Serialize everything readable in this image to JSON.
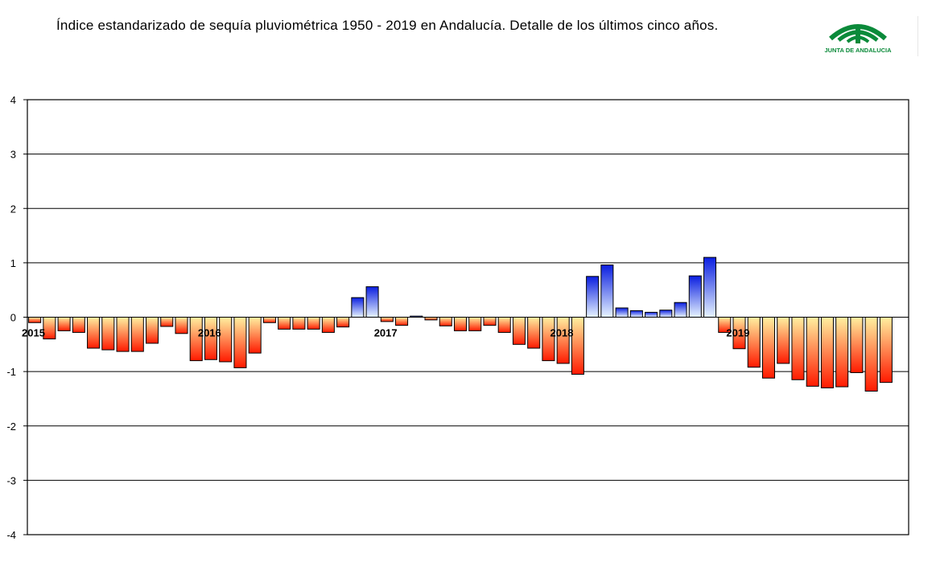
{
  "header": {
    "title": "Índice estandarizado de sequía pluviométrica 1950 - 2019 en Andalucía. Detalle de los últimos cinco años.",
    "logo_text": "JUNTA DE ANDALUCIA"
  },
  "colors": {
    "brand_green": "#0b8a3a",
    "negative_top": "#fff0a0",
    "negative_bottom": "#ff1a00",
    "positive_top": "#0a1ee0",
    "positive_bottom": "#e6f3ff",
    "grid": "#000000"
  },
  "chart_data": {
    "type": "bar",
    "title": "Índice estandarizado de sequía pluviométrica 1950 - 2019 en Andalucía. Detalle de los últimos cinco años.",
    "ylim": [
      -4,
      4
    ],
    "yticks": [
      4,
      3,
      2,
      1,
      0,
      -1,
      -2,
      -3,
      -4
    ],
    "grid": true,
    "year_labels": [
      {
        "label": "2015",
        "index": 0
      },
      {
        "label": "2016",
        "index": 12
      },
      {
        "label": "2017",
        "index": 24
      },
      {
        "label": "2018",
        "index": 36
      },
      {
        "label": "2019",
        "index": 48
      }
    ],
    "values": [
      -0.1,
      -0.4,
      -0.25,
      -0.28,
      -0.57,
      -0.6,
      -0.63,
      -0.63,
      -0.48,
      -0.17,
      -0.3,
      -0.8,
      -0.78,
      -0.82,
      -0.93,
      -0.66,
      -0.1,
      -0.22,
      -0.22,
      -0.22,
      -0.28,
      -0.18,
      0.36,
      0.56,
      -0.08,
      -0.15,
      0.02,
      -0.05,
      -0.16,
      -0.25,
      -0.25,
      -0.15,
      -0.28,
      -0.5,
      -0.57,
      -0.8,
      -0.85,
      -1.05,
      0.75,
      0.96,
      0.17,
      0.12,
      0.09,
      0.13,
      0.27,
      0.76,
      1.1,
      -0.28,
      -0.58,
      -0.92,
      -1.12,
      -0.85,
      -1.15,
      -1.27,
      -1.3,
      -1.28,
      -1.02,
      -1.36,
      -1.2
    ]
  }
}
